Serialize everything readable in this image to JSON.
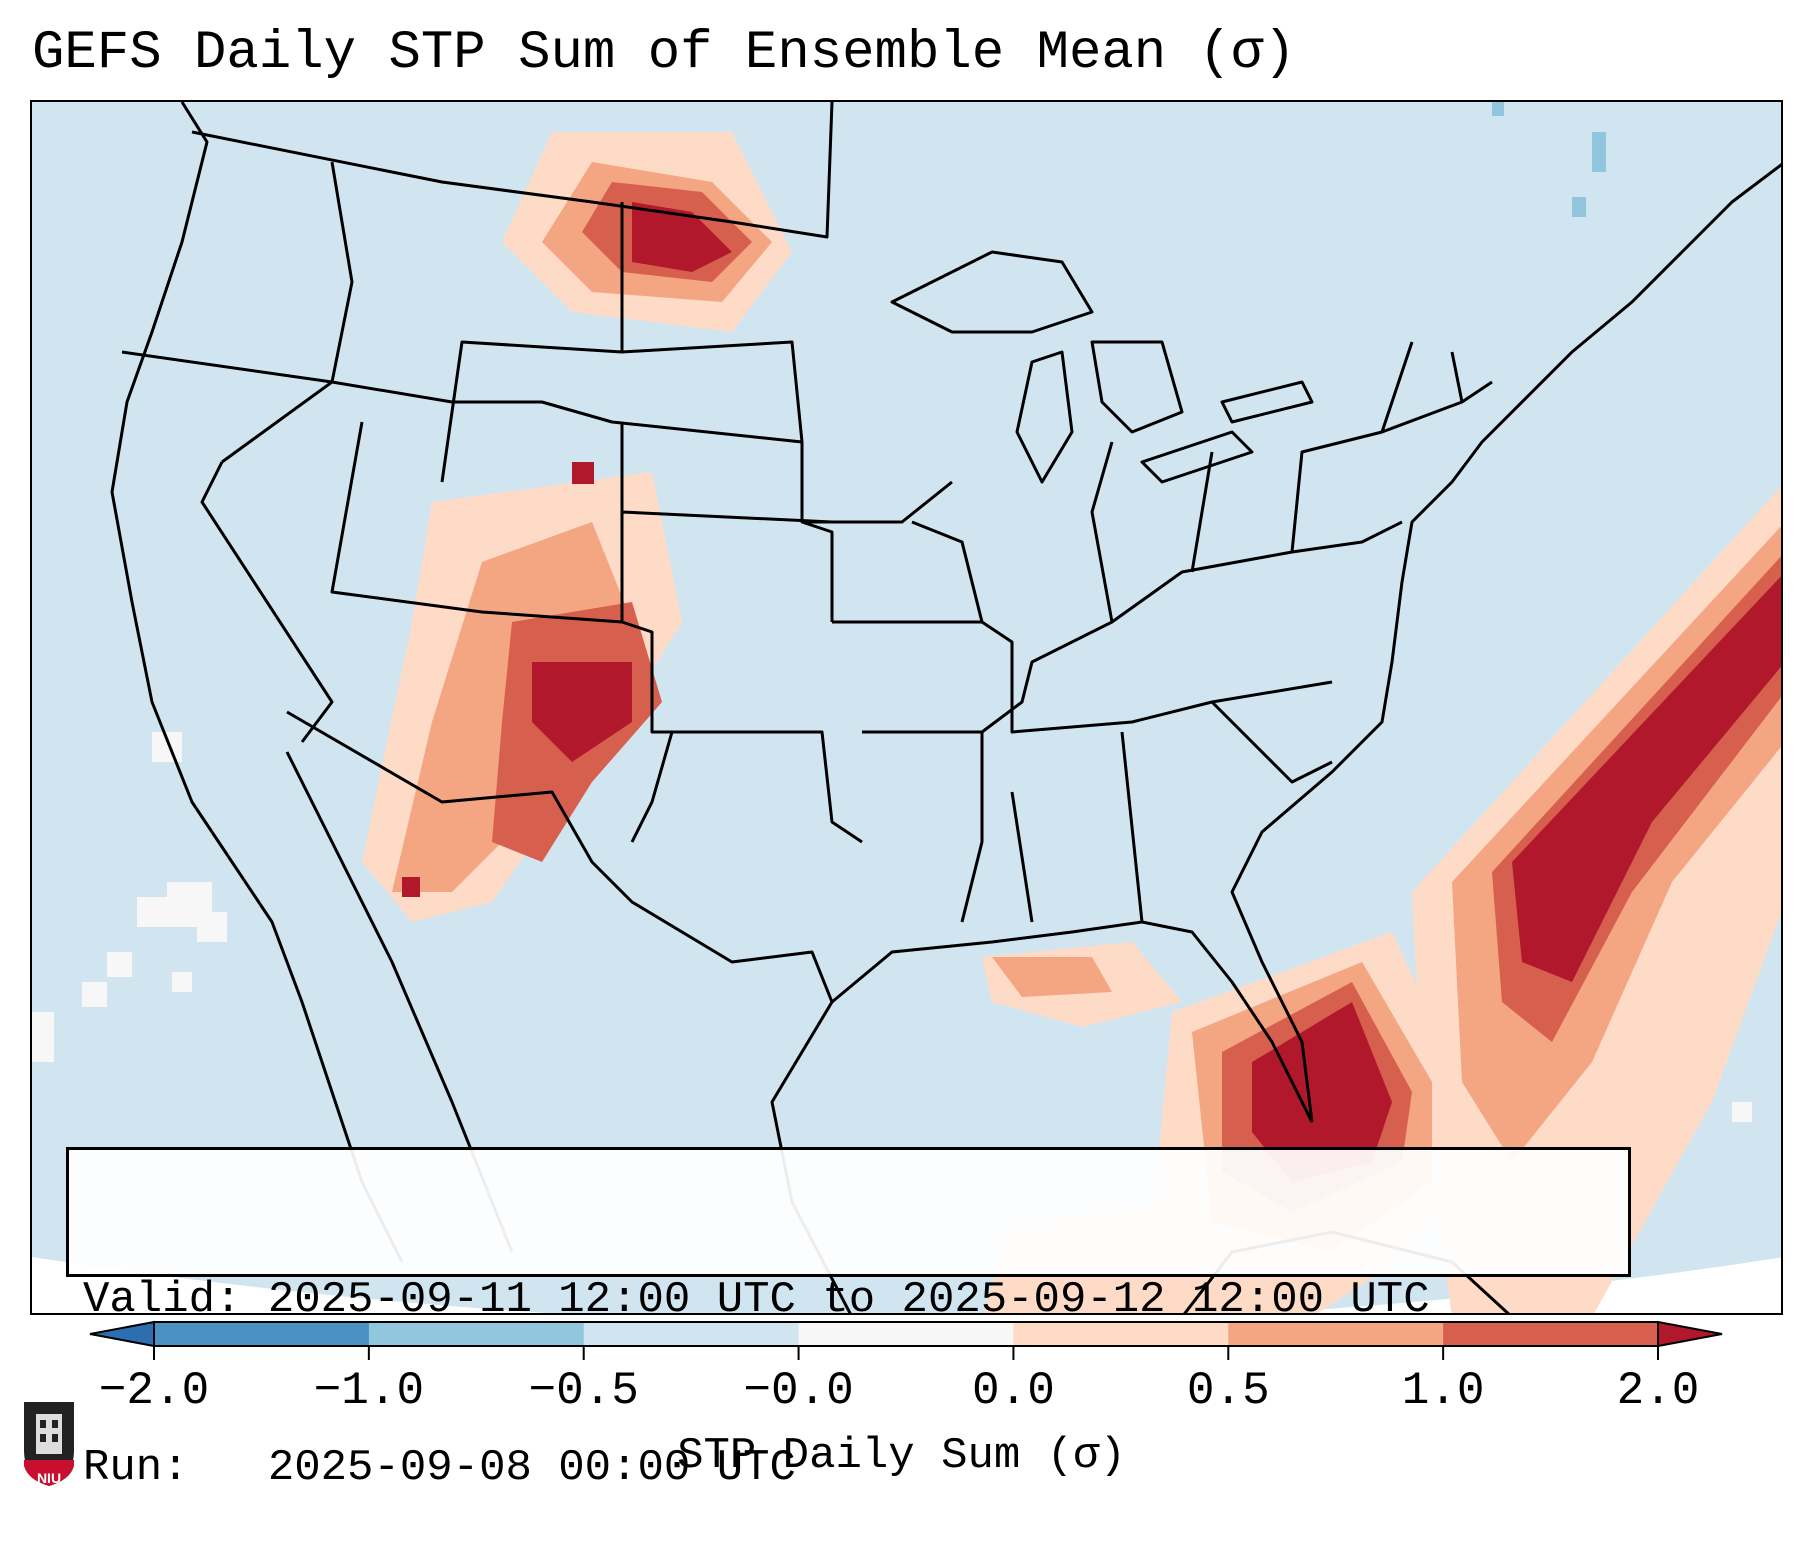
{
  "title": "GEFS Daily STP Sum of Ensemble Mean (σ)",
  "info": {
    "valid_line": "Valid: 2025-09-11 12:00 UTC to 2025-09-12 12:00 UTC",
    "run_line": "Run:   2025-09-08 00:00 UTC"
  },
  "colorbar": {
    "label": "STP Daily Sum (σ)",
    "ticks": [
      "−2.0",
      "−1.0",
      "−0.5",
      "−0.0",
      "0.0",
      "0.5",
      "1.0",
      "2.0"
    ],
    "colors": [
      "#2c6eb0",
      "#4a90c2",
      "#92c5de",
      "#d1e5f0",
      "#f7f7f7",
      "#fddbc7",
      "#f4a582",
      "#d6604d",
      "#b2182b"
    ]
  },
  "map": {
    "region": "Continental United States",
    "field_colors": {
      "background": "#d1e5f0",
      "neutral": "#f7f7f7",
      "light": "#fddbc7",
      "medium": "#f4a582",
      "strong": "#d6604d",
      "extreme": "#b2182b"
    }
  },
  "logo": {
    "text": "NIU"
  }
}
